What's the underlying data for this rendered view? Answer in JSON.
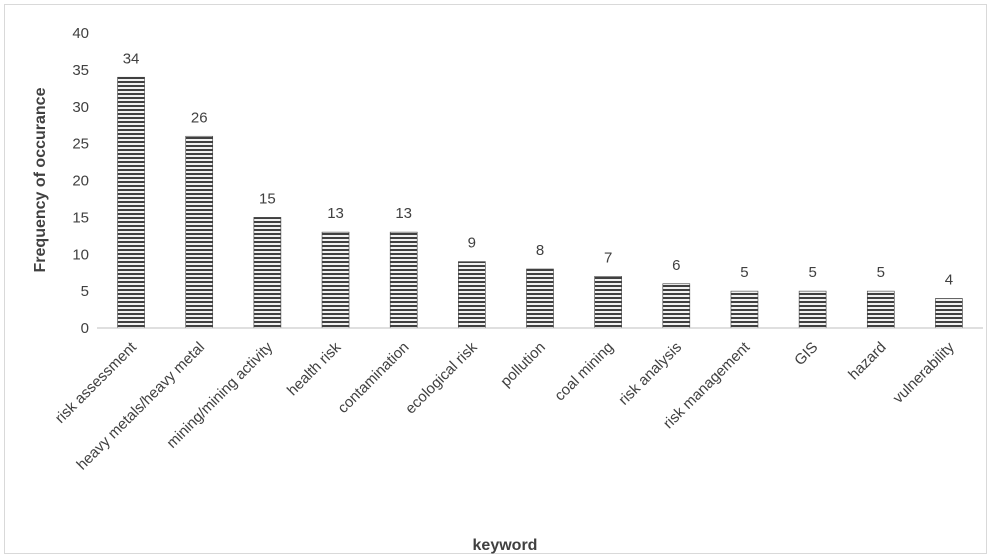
{
  "chart_data": {
    "type": "bar",
    "title": "",
    "xlabel": "keyword",
    "ylabel": "Frequency of occurance",
    "categories": [
      "risk assessment",
      "heavy metals/heavy metal",
      "mining/mining activity",
      "health risk",
      "contamination",
      "ecological risk",
      "pollution",
      "coal mining",
      "risk analysis",
      "risk management",
      "GIS",
      "hazard",
      "vulnerability"
    ],
    "values": [
      34,
      26,
      15,
      13,
      13,
      9,
      8,
      7,
      6,
      5,
      5,
      5,
      4
    ],
    "ylim": [
      0,
      40
    ],
    "yticks": [
      0,
      5,
      10,
      15,
      20,
      25,
      30,
      35,
      40
    ],
    "grid": false,
    "legend": "none",
    "data_labels": true,
    "bar_fill": "horizontal stripes",
    "colors": {
      "bar_dark": "#404040",
      "bar_light": "#f2f2f2",
      "axis": "#bfbfbf",
      "text": "#404040"
    }
  }
}
